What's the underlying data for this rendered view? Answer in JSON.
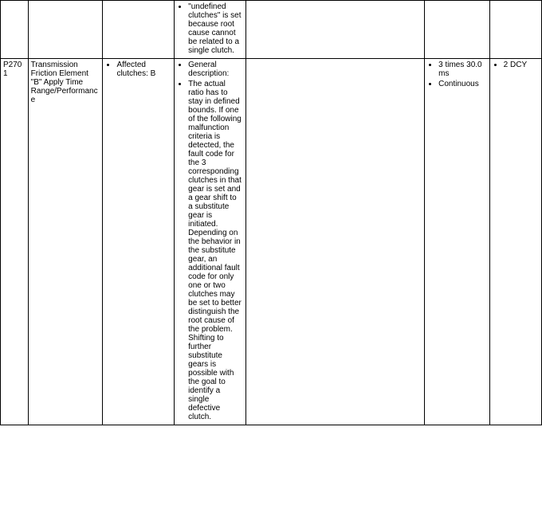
{
  "row_prev": {
    "col_detail_items": [
      "\"undefined clutches\" is set because root cause cannot be related to a single clutch."
    ]
  },
  "row_p2701": {
    "code": "P2701",
    "description": "Transmission Friction Element \"B\" Apply Time Range/Performance",
    "affected_items": [
      "Affected clutches: B"
    ],
    "detail_items": [
      "General description:",
      "The actual ratio has to stay in defined bounds. If one of the following malfunction criteria is detected, the fault code for the 3 corresponding clutches in that gear is set and a gear shift to a substitute gear is initiated. Depending on the behavior in the substitute gear, an additional fault code for only one or two clutches may be set to better distinguish the root cause of the problem. Shifting to further substitute gears is possible with the goal to identify a single defective clutch."
    ],
    "freq_items": [
      "3 times 30.0 ms",
      "Continuous"
    ],
    "dcy_items": [
      "2 DCY"
    ]
  }
}
